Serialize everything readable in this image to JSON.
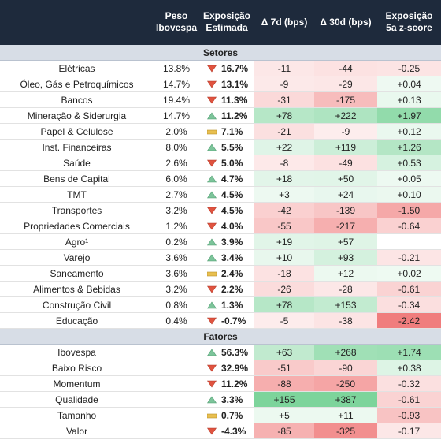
{
  "table": {
    "headers": [
      "Peso\nIbovespa",
      "Exposição\nEstimada",
      "Δ 7d (bps)",
      "Δ 30d (bps)",
      "Exposição\n5a z-score"
    ],
    "sections": [
      {
        "title": "Setores",
        "rows": [
          {
            "label": "Elétricas",
            "weight": "13.8%",
            "trend": "down",
            "exposure": "16.7%",
            "d7": "-11",
            "d30": "-44",
            "z": "-0.25"
          },
          {
            "label": "Óleo, Gás e Petroquímicos",
            "weight": "14.7%",
            "trend": "down",
            "exposure": "13.1%",
            "d7": "-9",
            "d30": "-29",
            "z": "+0.04"
          },
          {
            "label": "Bancos",
            "weight": "19.4%",
            "trend": "down",
            "exposure": "11.3%",
            "d7": "-31",
            "d30": "-175",
            "z": "+0.13"
          },
          {
            "label": "Mineração & Siderurgia",
            "weight": "14.7%",
            "trend": "up",
            "exposure": "11.2%",
            "d7": "+78",
            "d30": "+222",
            "z": "+1.97"
          },
          {
            "label": "Papel & Celulose",
            "weight": "2.0%",
            "trend": "flat",
            "exposure": "7.1%",
            "d7": "-21",
            "d30": "-9",
            "z": "+0.12"
          },
          {
            "label": "Inst. Financeiras",
            "weight": "8.0%",
            "trend": "up",
            "exposure": "5.5%",
            "d7": "+22",
            "d30": "+119",
            "z": "+1.26"
          },
          {
            "label": "Saúde",
            "weight": "2.6%",
            "trend": "down",
            "exposure": "5.0%",
            "d7": "-8",
            "d30": "-49",
            "z": "+0.53"
          },
          {
            "label": "Bens de Capital",
            "weight": "6.0%",
            "trend": "up",
            "exposure": "4.7%",
            "d7": "+18",
            "d30": "+50",
            "z": "+0.05"
          },
          {
            "label": "TMT",
            "weight": "2.7%",
            "trend": "up",
            "exposure": "4.5%",
            "d7": "+3",
            "d30": "+24",
            "z": "+0.10"
          },
          {
            "label": "Transportes",
            "weight": "3.2%",
            "trend": "down",
            "exposure": "4.5%",
            "d7": "-42",
            "d30": "-139",
            "z": "-1.50"
          },
          {
            "label": "Propriedades Comerciais",
            "weight": "1.2%",
            "trend": "down",
            "exposure": "4.0%",
            "d7": "-55",
            "d30": "-217",
            "z": "-0.64"
          },
          {
            "label": "Agro¹",
            "weight": "0.2%",
            "trend": "up",
            "exposure": "3.9%",
            "d7": "+19",
            "d30": "+57",
            "z": null
          },
          {
            "label": "Varejo",
            "weight": "3.6%",
            "trend": "up",
            "exposure": "3.4%",
            "d7": "+10",
            "d30": "+93",
            "z": "-0.21"
          },
          {
            "label": "Saneamento",
            "weight": "3.6%",
            "trend": "flat",
            "exposure": "2.4%",
            "d7": "-18",
            "d30": "+12",
            "z": "+0.02"
          },
          {
            "label": "Alimentos & Bebidas",
            "weight": "3.2%",
            "trend": "down",
            "exposure": "2.2%",
            "d7": "-26",
            "d30": "-28",
            "z": "-0.61"
          },
          {
            "label": "Construção Civil",
            "weight": "0.8%",
            "trend": "up",
            "exposure": "1.3%",
            "d7": "+78",
            "d30": "+153",
            "z": "-0.34"
          },
          {
            "label": "Educação",
            "weight": "0.4%",
            "trend": "down",
            "exposure": "-0.7%",
            "d7": "-5",
            "d30": "-38",
            "z": "-2.42"
          }
        ]
      },
      {
        "title": "Fatores",
        "rows": [
          {
            "label": "Ibovespa",
            "weight": null,
            "trend": "up",
            "exposure": "56.3%",
            "d7": "+63",
            "d30": "+268",
            "z": "+1.74"
          },
          {
            "label": "Baixo Risco",
            "weight": null,
            "trend": "down",
            "exposure": "32.9%",
            "d7": "-51",
            "d30": "-90",
            "z": "+0.38"
          },
          {
            "label": "Momentum",
            "weight": null,
            "trend": "down",
            "exposure": "11.2%",
            "d7": "-88",
            "d30": "-250",
            "z": "-0.32"
          },
          {
            "label": "Qualidade",
            "weight": null,
            "trend": "up",
            "exposure": "3.3%",
            "d7": "+155",
            "d30": "+387",
            "z": "-0.61"
          },
          {
            "label": "Tamanho",
            "weight": null,
            "trend": "flat",
            "exposure": "0.7%",
            "d7": "+5",
            "d30": "+11",
            "z": "-0.93"
          },
          {
            "label": "Valor",
            "weight": null,
            "trend": "down",
            "exposure": "-4.3%",
            "d7": "-85",
            "d30": "-325",
            "z": "-0.17"
          }
        ]
      }
    ]
  }
}
